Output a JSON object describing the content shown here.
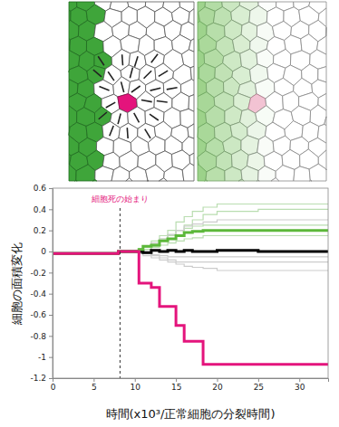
{
  "chart_data": {
    "type": "step",
    "y_label": "細胞の面積変化",
    "x_label": "時間(x10³/正常細胞の分裂時間)",
    "annotations": [
      {
        "text": "細胞死の始まり",
        "x": 8.2
      }
    ],
    "x": [
      0,
      8,
      10.5,
      11,
      12,
      13,
      14,
      15,
      16,
      17,
      18.3,
      20,
      25,
      33.5
    ],
    "xlim": [
      0,
      33.5
    ],
    "xticks": [
      0,
      5,
      10,
      15,
      20,
      25,
      30
    ],
    "ylim": [
      -1.2,
      0.6
    ],
    "yticks": [
      0.6,
      0.4,
      0.2,
      0,
      -0.2,
      -0.4,
      -0.6,
      -0.8,
      -1,
      -1.2
    ],
    "series": [
      {
        "color": "#b9ddb0",
        "line_style": "thin",
        "values": [
          -0.02,
          0,
          0.03,
          0.05,
          0.1,
          0.15,
          0.2,
          0.28,
          0.33,
          0.38,
          0.42,
          0.45,
          0.45,
          0.45
        ]
      },
      {
        "color": "#b9ddb0",
        "line_style": "thin",
        "values": [
          -0.02,
          0,
          0.01,
          0.02,
          0.05,
          0.1,
          0.15,
          0.2,
          0.25,
          0.3,
          0.35,
          0.38,
          0.4,
          0.4
        ]
      },
      {
        "color": "#b9ddb0",
        "line_style": "thin",
        "values": [
          -0.02,
          0,
          0.02,
          0.04,
          0.08,
          0.12,
          0.16,
          0.2,
          0.22,
          0.24,
          0.25,
          0.25,
          0.25,
          0.25
        ]
      },
      {
        "color": "#b9ddb0",
        "line_style": "thin",
        "values": [
          -0.02,
          0,
          0.01,
          0.02,
          0.04,
          0.06,
          0.08,
          0.1,
          0.12,
          0.13,
          0.15,
          0.15,
          0.15,
          0.15
        ]
      },
      {
        "color": "#cccccc",
        "line_style": "thin",
        "values": [
          -0.02,
          0,
          0.02,
          0.05,
          0.08,
          0.12,
          0.16,
          0.2,
          0.24,
          0.26,
          0.28,
          0.3,
          0.3,
          0.3
        ]
      },
      {
        "color": "#cccccc",
        "line_style": "thin",
        "values": [
          -0.02,
          0,
          -0.01,
          -0.02,
          -0.03,
          -0.04,
          -0.05,
          -0.05,
          -0.05,
          -0.05,
          -0.05,
          -0.05,
          -0.05,
          -0.05
        ]
      },
      {
        "color": "#cccccc",
        "line_style": "thin",
        "values": [
          -0.02,
          0,
          -0.01,
          -0.02,
          -0.04,
          -0.06,
          -0.08,
          -0.1,
          -0.1,
          -0.1,
          -0.1,
          -0.1,
          -0.1,
          -0.1
        ]
      },
      {
        "color": "#cccccc",
        "line_style": "thin",
        "values": [
          -0.02,
          0,
          -0.02,
          -0.04,
          -0.06,
          -0.08,
          -0.1,
          -0.12,
          -0.14,
          -0.15,
          -0.16,
          -0.18,
          -0.18,
          -0.18
        ]
      },
      {
        "color": "#000000",
        "line_style": "bold",
        "values": [
          -0.02,
          0,
          0,
          -0.01,
          0.01,
          0,
          0.01,
          0,
          0.01,
          0,
          0,
          0.01,
          0,
          0
        ]
      },
      {
        "color": "#5cb83a",
        "line_style": "bold",
        "values": [
          -0.02,
          0,
          0.02,
          0.05,
          0.06,
          0.1,
          0.12,
          0.15,
          0.18,
          0.19,
          0.2,
          0.2,
          0.2,
          0.2
        ]
      },
      {
        "color": "#e4147c",
        "line_style": "bold",
        "values": [
          -0.02,
          0,
          -0.3,
          -0.3,
          -0.34,
          -0.52,
          -0.52,
          -0.7,
          -0.85,
          -0.85,
          -1.07,
          -1.07,
          -1.07,
          -1.07
        ]
      }
    ]
  }
}
